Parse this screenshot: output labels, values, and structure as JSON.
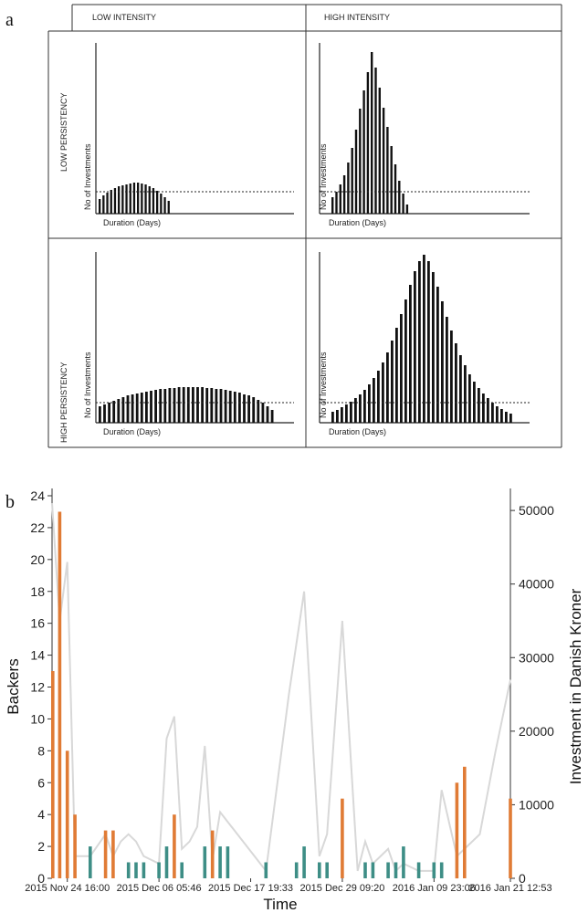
{
  "chart_data": [
    {
      "type": "bar",
      "panel_label": "a",
      "column_headers": [
        "LOW INTENSITY",
        "HIGH INTENSITY"
      ],
      "row_headers": [
        "LOW PERSISTENCY",
        "HIGH PERSISTENCY"
      ],
      "ylabel": "No of Investments",
      "xlabel": "Duration (Days)",
      "baseline_note": "dotted line = constant reference level",
      "panels": [
        {
          "id": "low-persistency-low-intensity",
          "reference": 24,
          "values": [
            16,
            20,
            23,
            26,
            28,
            30,
            31,
            32,
            33,
            34,
            34,
            33,
            32,
            30,
            28,
            25,
            22,
            18,
            14
          ]
        },
        {
          "id": "low-persistency-high-intensity",
          "reference": 24,
          "values": [
            18,
            24,
            32,
            42,
            56,
            72,
            92,
            115,
            135,
            155,
            177,
            160,
            138,
            116,
            95,
            74,
            54,
            36,
            22,
            10
          ]
        },
        {
          "id": "high-persistency-low-intensity",
          "reference": 22,
          "values": [
            18,
            20,
            22,
            24,
            26,
            28,
            30,
            31,
            32,
            33,
            34,
            35,
            36,
            37,
            37,
            38,
            38,
            39,
            39,
            39,
            39,
            39,
            39,
            38,
            38,
            37,
            37,
            36,
            35,
            34,
            33,
            31,
            30,
            28,
            25,
            22,
            18,
            14
          ]
        },
        {
          "id": "high-persistency-high-intensity",
          "reference": 22,
          "values": [
            12,
            14,
            17,
            20,
            23,
            27,
            31,
            36,
            42,
            49,
            57,
            66,
            77,
            90,
            104,
            119,
            135,
            151,
            166,
            177,
            184,
            177,
            165,
            149,
            133,
            116,
            101,
            87,
            74,
            63,
            53,
            45,
            38,
            32,
            27,
            22,
            18,
            15,
            12,
            10
          ]
        }
      ]
    },
    {
      "type": "bar+line",
      "panel_label": "b",
      "xlabel": "Time",
      "ylabel": "Backers",
      "y2label": "Investment in Danish Kroner",
      "ylim": [
        0,
        24
      ],
      "yticks": [
        0,
        2,
        4,
        6,
        8,
        10,
        12,
        14,
        16,
        18,
        20,
        22,
        24
      ],
      "y2lim": [
        0,
        52000
      ],
      "y2ticks": [
        0,
        10000,
        20000,
        30000,
        40000,
        50000
      ],
      "xlim": [
        0,
        60
      ],
      "xticks": [
        {
          "label": "2015 Nov 24 16:00",
          "x": 2
        },
        {
          "label": "2015 Dec 06 05:46",
          "x": 14
        },
        {
          "label": "2015 Dec 17 19:33",
          "x": 26
        },
        {
          "label": "2015 Dec 29 09:20",
          "x": 38
        },
        {
          "label": "2016 Jan 09 23:06",
          "x": 50
        },
        {
          "label": "2016 Jan 21 12:53",
          "x": 60
        }
      ],
      "series": [
        {
          "name": "orange-bars",
          "color": "#e07b35",
          "points": [
            [
              0.1,
              13
            ],
            [
              1,
              23
            ],
            [
              2,
              8
            ],
            [
              3,
              4
            ],
            [
              7,
              3
            ],
            [
              8,
              3
            ],
            [
              16,
              4
            ],
            [
              21,
              3
            ],
            [
              38,
              5
            ],
            [
              53,
              6
            ],
            [
              54,
              7
            ],
            [
              60,
              5
            ]
          ]
        },
        {
          "name": "teal-bars",
          "color": "#3e8e86",
          "points": [
            [
              5,
              2
            ],
            [
              10,
              1
            ],
            [
              11,
              1
            ],
            [
              12,
              1
            ],
            [
              14,
              1
            ],
            [
              15,
              2
            ],
            [
              17,
              1
            ],
            [
              20,
              2
            ],
            [
              22,
              2
            ],
            [
              23,
              2
            ],
            [
              28,
              1
            ],
            [
              32,
              1
            ],
            [
              33,
              2
            ],
            [
              35,
              1
            ],
            [
              36,
              1
            ],
            [
              41,
              1
            ],
            [
              42,
              1
            ],
            [
              44,
              1
            ],
            [
              45,
              1
            ],
            [
              46,
              2
            ],
            [
              48,
              1
            ],
            [
              50,
              1
            ],
            [
              51,
              1
            ]
          ]
        },
        {
          "name": "investment-line",
          "color": "#d8d8d8",
          "points": [
            [
              0,
              51000
            ],
            [
              1,
              35000
            ],
            [
              2,
              43000
            ],
            [
              3,
              3000
            ],
            [
              5,
              3000
            ],
            [
              7,
              6000
            ],
            [
              8,
              3000
            ],
            [
              9,
              5000
            ],
            [
              10,
              6000
            ],
            [
              11,
              5000
            ],
            [
              12,
              3000
            ],
            [
              13,
              2500
            ],
            [
              14,
              2000
            ],
            [
              15,
              19000
            ],
            [
              16,
              22000
            ],
            [
              17,
              4000
            ],
            [
              18,
              5000
            ],
            [
              19,
              7000
            ],
            [
              20,
              18000
            ],
            [
              21,
              2500
            ],
            [
              22,
              9000
            ],
            [
              28,
              1000
            ],
            [
              31,
              25000
            ],
            [
              33,
              39000
            ],
            [
              35,
              3000
            ],
            [
              36,
              6000
            ],
            [
              38,
              35000
            ],
            [
              40,
              1000
            ],
            [
              41,
              5000
            ],
            [
              42,
              2000
            ],
            [
              44,
              4000
            ],
            [
              45,
              1000
            ],
            [
              46,
              2000
            ],
            [
              48,
              1000
            ],
            [
              50,
              1000
            ],
            [
              51,
              12000
            ],
            [
              53,
              3000
            ],
            [
              56,
              6000
            ],
            [
              58,
              17000
            ],
            [
              60,
              27000
            ]
          ]
        }
      ]
    }
  ]
}
